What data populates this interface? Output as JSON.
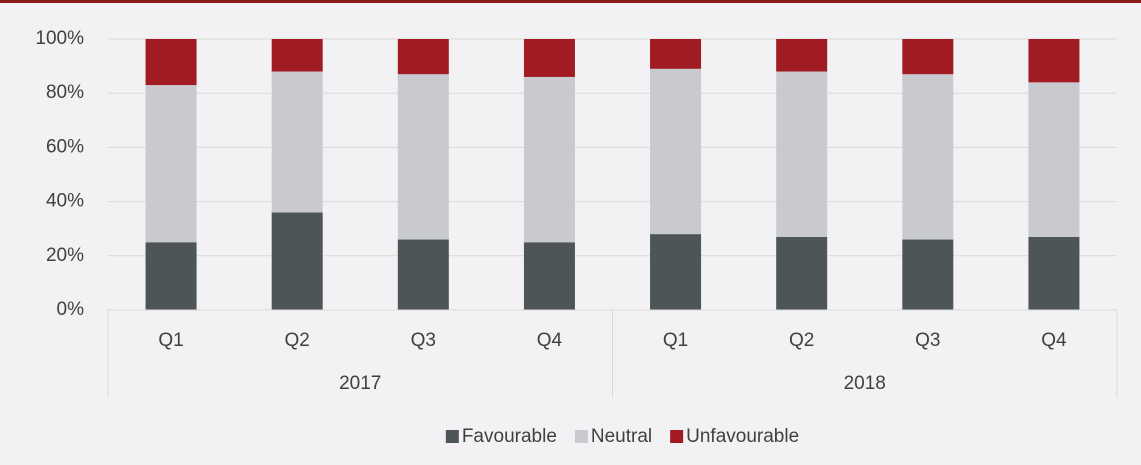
{
  "chart_data": {
    "type": "stacked_bar",
    "categories": [
      "Q1",
      "Q2",
      "Q3",
      "Q4",
      "Q1",
      "Q2",
      "Q3",
      "Q4"
    ],
    "groups": [
      "2017",
      "2018"
    ],
    "series": [
      {
        "name": "Favourable",
        "color": "#4d5556",
        "values": [
          25,
          36,
          26,
          25,
          28,
          27,
          26,
          27
        ]
      },
      {
        "name": "Neutral",
        "color": "#c8cad0",
        "values": [
          58,
          52,
          61,
          61,
          61,
          61,
          61,
          57
        ]
      },
      {
        "name": "Unfavourable",
        "color": "#a01c22",
        "values": [
          17,
          12,
          13,
          14,
          11,
          12,
          13,
          16
        ]
      }
    ],
    "ylim": [
      0,
      100
    ],
    "yticks": [
      {
        "value": 0,
        "label": "0%"
      },
      {
        "value": 20,
        "label": "20%"
      },
      {
        "value": 40,
        "label": "40%"
      },
      {
        "value": 60,
        "label": "60%"
      },
      {
        "value": 80,
        "label": "80%"
      },
      {
        "value": 100,
        "label": "100%"
      }
    ],
    "grid": true,
    "legend": "bottom"
  }
}
